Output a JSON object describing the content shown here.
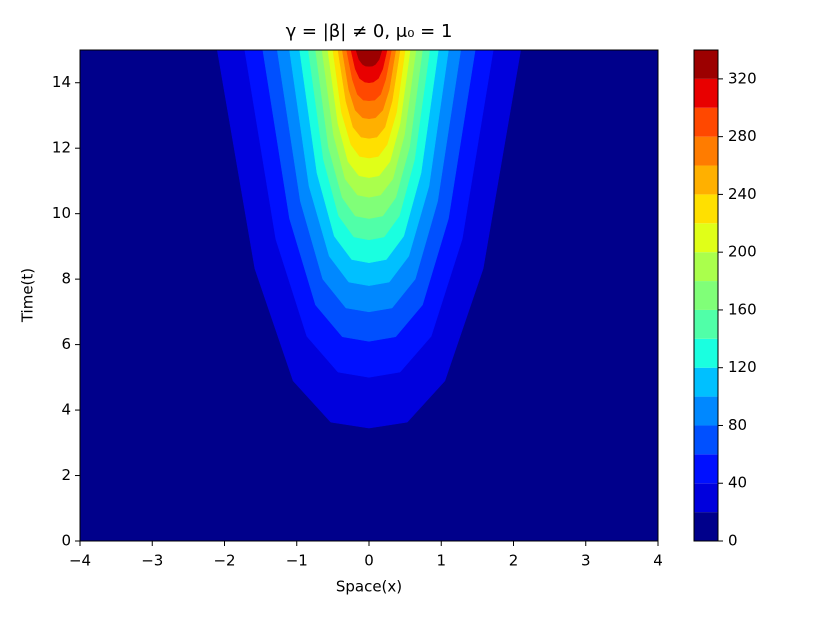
{
  "chart_data": {
    "type": "contourf",
    "title": "γ = |β| ≠ 0,  μ₀ = 1",
    "x_label": "Space(x)",
    "y_label": "Time(t)",
    "xlim": [
      -4,
      4
    ],
    "xticks": [
      {
        "value": -4,
        "label": "−4"
      },
      {
        "value": -3,
        "label": "−3"
      },
      {
        "value": -2,
        "label": "−2"
      },
      {
        "value": -1,
        "label": "−1"
      },
      0,
      1,
      2,
      3,
      4
    ],
    "ylim": [
      0,
      15
    ],
    "yticks": [
      0,
      2,
      4,
      6,
      8,
      10,
      12,
      14
    ],
    "levels": [
      0,
      20,
      40,
      60,
      80,
      100,
      120,
      140,
      160,
      180,
      200,
      220,
      240,
      260,
      280,
      300,
      320,
      340
    ],
    "colors": [
      "#00008b",
      "#0000dd",
      "#0010ff",
      "#0050ff",
      "#0088ff",
      "#00c0ff",
      "#1affe0",
      "#50ffa8",
      "#80ff78",
      "#aaff4c",
      "#e0ff18",
      "#ffe000",
      "#ffb000",
      "#ff7c00",
      "#ff4800",
      "#e80000",
      "#9c0000"
    ],
    "colorbar_ticks": [
      0,
      40,
      80,
      120,
      160,
      200,
      240,
      280,
      320
    ],
    "contours": [
      {
        "x": [
          -2.1,
          -1.58,
          -1.05,
          -0.53,
          0,
          0.53,
          1.05,
          1.58,
          2.1
        ],
        "t": [
          15,
          8.32,
          4.89,
          3.63,
          3.45,
          3.63,
          4.89,
          8.32,
          15
        ]
      },
      {
        "x": [
          -1.72,
          -1.29,
          -0.86,
          -0.43,
          0,
          0.43,
          0.86,
          1.29,
          1.72
        ],
        "t": [
          15,
          9.22,
          6.25,
          5.16,
          5.0,
          5.16,
          6.25,
          9.22,
          15
        ]
      },
      {
        "x": [
          -1.47,
          -1.1,
          -0.74,
          -0.37,
          0,
          0.37,
          0.74,
          1.1,
          1.47
        ],
        "t": [
          15,
          9.85,
          7.21,
          6.24,
          6.1,
          6.24,
          7.21,
          9.85,
          15
        ]
      },
      {
        "x": [
          -1.27,
          -0.95,
          -0.64,
          -0.32,
          0,
          0.32,
          0.64,
          0.95,
          1.27
        ],
        "t": [
          15,
          10.38,
          8.0,
          7.12,
          7.0,
          7.12,
          8.0,
          10.38,
          15
        ]
      },
      {
        "x": [
          -1.1,
          -0.83,
          -0.55,
          -0.28,
          0,
          0.28,
          0.55,
          0.83,
          1.1
        ],
        "t": [
          15,
          10.84,
          8.7,
          7.91,
          7.8,
          7.91,
          8.7,
          10.84,
          15
        ]
      },
      {
        "x": [
          -0.96,
          -0.72,
          -0.48,
          -0.24,
          0,
          0.24,
          0.48,
          0.72,
          0.96
        ],
        "t": [
          15,
          11.24,
          9.31,
          8.6,
          8.5,
          8.6,
          9.31,
          11.24,
          15
        ]
      },
      {
        "x": [
          -0.84,
          -0.63,
          -0.42,
          -0.21,
          0,
          0.21,
          0.42,
          0.63,
          0.84
        ],
        "t": [
          15,
          11.65,
          9.93,
          9.29,
          9.2,
          9.29,
          9.93,
          11.65,
          15
        ]
      },
      {
        "x": [
          -0.74,
          -0.56,
          -0.37,
          -0.19,
          0,
          0.19,
          0.37,
          0.56,
          0.74
        ],
        "t": [
          15,
          12.02,
          10.49,
          9.93,
          9.85,
          9.93,
          10.49,
          12.02,
          15
        ]
      },
      {
        "x": [
          -0.65,
          -0.49,
          -0.33,
          -0.16,
          0,
          0.16,
          0.33,
          0.49,
          0.65
        ],
        "t": [
          15,
          12.4,
          11.06,
          10.57,
          10.5,
          10.57,
          11.06,
          12.4,
          15
        ]
      },
      {
        "x": [
          -0.57,
          -0.43,
          -0.29,
          -0.14,
          0,
          0.14,
          0.29,
          0.43,
          0.57
        ],
        "t": [
          15,
          12.75,
          11.59,
          11.16,
          11.1,
          11.16,
          11.59,
          12.75,
          15
        ]
      },
      {
        "x": [
          -0.5,
          -0.38,
          -0.25,
          -0.13,
          0,
          0.13,
          0.25,
          0.38,
          0.5
        ],
        "t": [
          15,
          13.09,
          12.11,
          11.75,
          11.7,
          11.75,
          12.11,
          13.09,
          15
        ]
      },
      {
        "x": [
          -0.43,
          -0.32,
          -0.22,
          -0.11,
          0,
          0.11,
          0.22,
          0.32,
          0.43
        ],
        "t": [
          15,
          13.44,
          12.64,
          12.34,
          12.3,
          12.34,
          12.64,
          13.44,
          15
        ]
      },
      {
        "x": [
          -0.37,
          -0.28,
          -0.19,
          -0.09,
          0,
          0.09,
          0.19,
          0.28,
          0.37
        ],
        "t": [
          15,
          13.79,
          13.16,
          12.93,
          12.9,
          12.93,
          13.16,
          13.79,
          15
        ]
      },
      {
        "x": [
          -0.31,
          -0.23,
          -0.16,
          -0.08,
          0,
          0.08,
          0.16,
          0.23,
          0.31
        ],
        "t": [
          15,
          14.1,
          13.64,
          13.47,
          13.45,
          13.47,
          13.64,
          14.1,
          15
        ]
      },
      {
        "x": [
          -0.25,
          -0.19,
          -0.13,
          -0.06,
          0,
          0.06,
          0.13,
          0.19,
          0.25
        ],
        "t": [
          15,
          14.42,
          14.13,
          14.02,
          14.0,
          14.02,
          14.13,
          14.42,
          15
        ]
      },
      {
        "x": [
          -0.18,
          -0.14,
          -0.09,
          -0.05,
          0,
          0.05,
          0.09,
          0.14,
          0.18
        ],
        "t": [
          15,
          14.71,
          14.56,
          14.51,
          14.5,
          14.51,
          14.56,
          14.71,
          15
        ]
      }
    ]
  }
}
